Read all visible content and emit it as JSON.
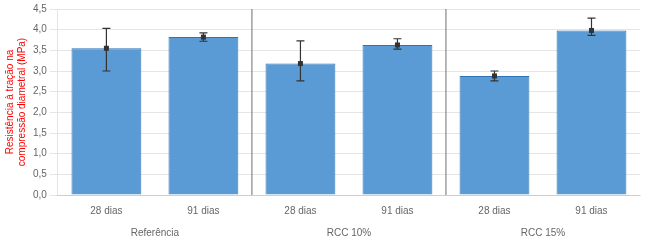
{
  "chart_data": {
    "type": "bar",
    "ylabel": "Resistência à tração na\ncompressão diametral (MPa)",
    "categories": [
      "Referência",
      "RCC 10%",
      "RCC 15%"
    ],
    "series": [
      {
        "name": "28 dias",
        "color": "#5B9BD5",
        "values": [
          3.55,
          3.18,
          2.88
        ],
        "errors_upper": [
          0.48,
          0.55,
          0.12
        ],
        "errors_lower": [
          0.55,
          0.42,
          0.12
        ]
      },
      {
        "name": "91 dias",
        "color": "#5B9BD5",
        "values": [
          3.82,
          3.63,
          3.98
        ],
        "errors_upper": [
          0.1,
          0.15,
          0.3
        ],
        "errors_lower": [
          0.1,
          0.1,
          0.12
        ]
      }
    ],
    "ylim": [
      0.0,
      4.5
    ],
    "yticks": [
      {
        "value": 0.0,
        "label": "0,0"
      },
      {
        "value": 0.5,
        "label": "0,5"
      },
      {
        "value": 1.0,
        "label": "1,0"
      },
      {
        "value": 1.5,
        "label": "1,5"
      },
      {
        "value": 2.0,
        "label": "2,0"
      },
      {
        "value": 2.5,
        "label": "2,5"
      },
      {
        "value": 3.0,
        "label": "3,0"
      },
      {
        "value": 3.5,
        "label": "3,5"
      },
      {
        "value": 4.0,
        "label": "4,0"
      },
      {
        "value": 4.5,
        "label": "4,5"
      }
    ],
    "grid": true
  }
}
